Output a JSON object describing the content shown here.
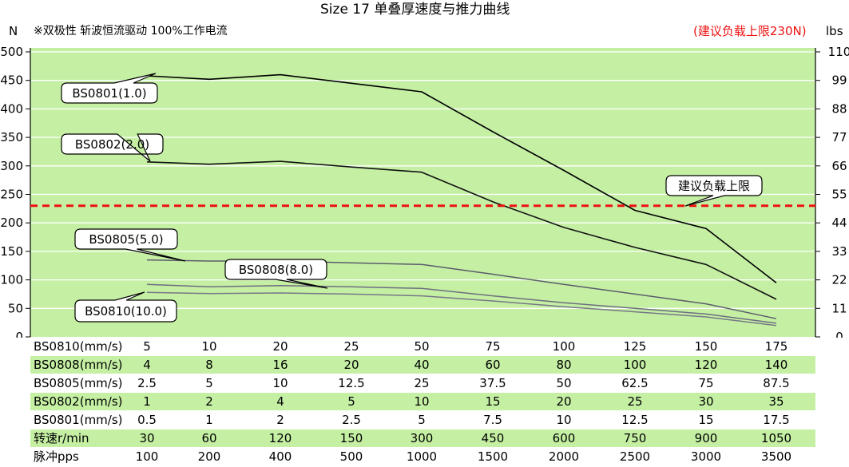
{
  "chart_data": {
    "type": "line",
    "title": "Size 17 单叠厚速度与推力曲线",
    "subtitle": "※双极性 斩波恒流驱动 100%工作电流",
    "note": "(建议负载上限230N)",
    "ylabel_left": "N",
    "ylabel_right": "lbs",
    "ylim": [
      0,
      500
    ],
    "yticks_left": [
      "0",
      "50",
      "100",
      "150",
      "200",
      "250",
      "300",
      "350",
      "400",
      "450",
      "500"
    ],
    "ylim_right": [
      0,
      110
    ],
    "yticks_right": [
      "0",
      "11",
      "22",
      "33",
      "44",
      "55",
      "66",
      "77",
      "88",
      "99",
      "110"
    ],
    "grid": "horizontal",
    "background": "#c5f0a4",
    "x_label": "转速r/min",
    "x": [
      30,
      60,
      120,
      150,
      300,
      450,
      600,
      750,
      900,
      1050
    ],
    "series": [
      {
        "name": "BS0801(1.0)",
        "values": [
          458,
          452,
          460,
          445,
          430,
          360,
          292,
          222,
          190,
          95
        ],
        "color": "#000000"
      },
      {
        "name": "BS0802(2.0)",
        "values": [
          307,
          303,
          308,
          298,
          289,
          237,
          192,
          157,
          127,
          66
        ],
        "color": "#111111"
      },
      {
        "name": "BS0805(5.0)",
        "values": [
          135,
          133,
          133,
          130,
          127,
          110,
          92,
          75,
          58,
          32
        ],
        "color": "#5b5b6b"
      },
      {
        "name": "BS0808(8.0)",
        "values": [
          92,
          88,
          90,
          88,
          85,
          72,
          60,
          50,
          40,
          24
        ],
        "color": "#6e6e80"
      },
      {
        "name": "BS0810(10.0)",
        "values": [
          78,
          76,
          77,
          75,
          72,
          63,
          53,
          44,
          35,
          20
        ],
        "color": "#777788"
      }
    ],
    "reference_line": {
      "label": "建议负载上限",
      "value": 230,
      "color": "#ee1111"
    },
    "table": {
      "columns": 10,
      "rows": [
        {
          "label": "BS0810(mm/s)",
          "values": [
            "5",
            "10",
            "20",
            "25",
            "50",
            "75",
            "100",
            "125",
            "150",
            "175"
          ],
          "shaded": false
        },
        {
          "label": "BS0808(mm/s)",
          "values": [
            "4",
            "8",
            "16",
            "20",
            "40",
            "60",
            "80",
            "100",
            "120",
            "140"
          ],
          "shaded": true
        },
        {
          "label": "BS0805(mm/s)",
          "values": [
            "2.5",
            "5",
            "10",
            "12.5",
            "25",
            "37.5",
            "50",
            "62.5",
            "75",
            "87.5"
          ],
          "shaded": false
        },
        {
          "label": "BS0802(mm/s)",
          "values": [
            "1",
            "2",
            "4",
            "5",
            "10",
            "15",
            "20",
            "25",
            "30",
            "35"
          ],
          "shaded": true
        },
        {
          "label": "BS0801(mm/s)",
          "values": [
            "0.5",
            "1",
            "2",
            "2.5",
            "5",
            "7.5",
            "10",
            "12.5",
            "15",
            "17.5"
          ],
          "shaded": false
        },
        {
          "label": "转速r/min",
          "values": [
            "30",
            "60",
            "120",
            "150",
            "300",
            "450",
            "600",
            "750",
            "900",
            "1050"
          ],
          "shaded": true
        },
        {
          "label": "脉冲pps",
          "values": [
            "100",
            "200",
            "400",
            "500",
            "1000",
            "1500",
            "2000",
            "2500",
            "3000",
            "3500"
          ],
          "shaded": false
        }
      ]
    }
  }
}
